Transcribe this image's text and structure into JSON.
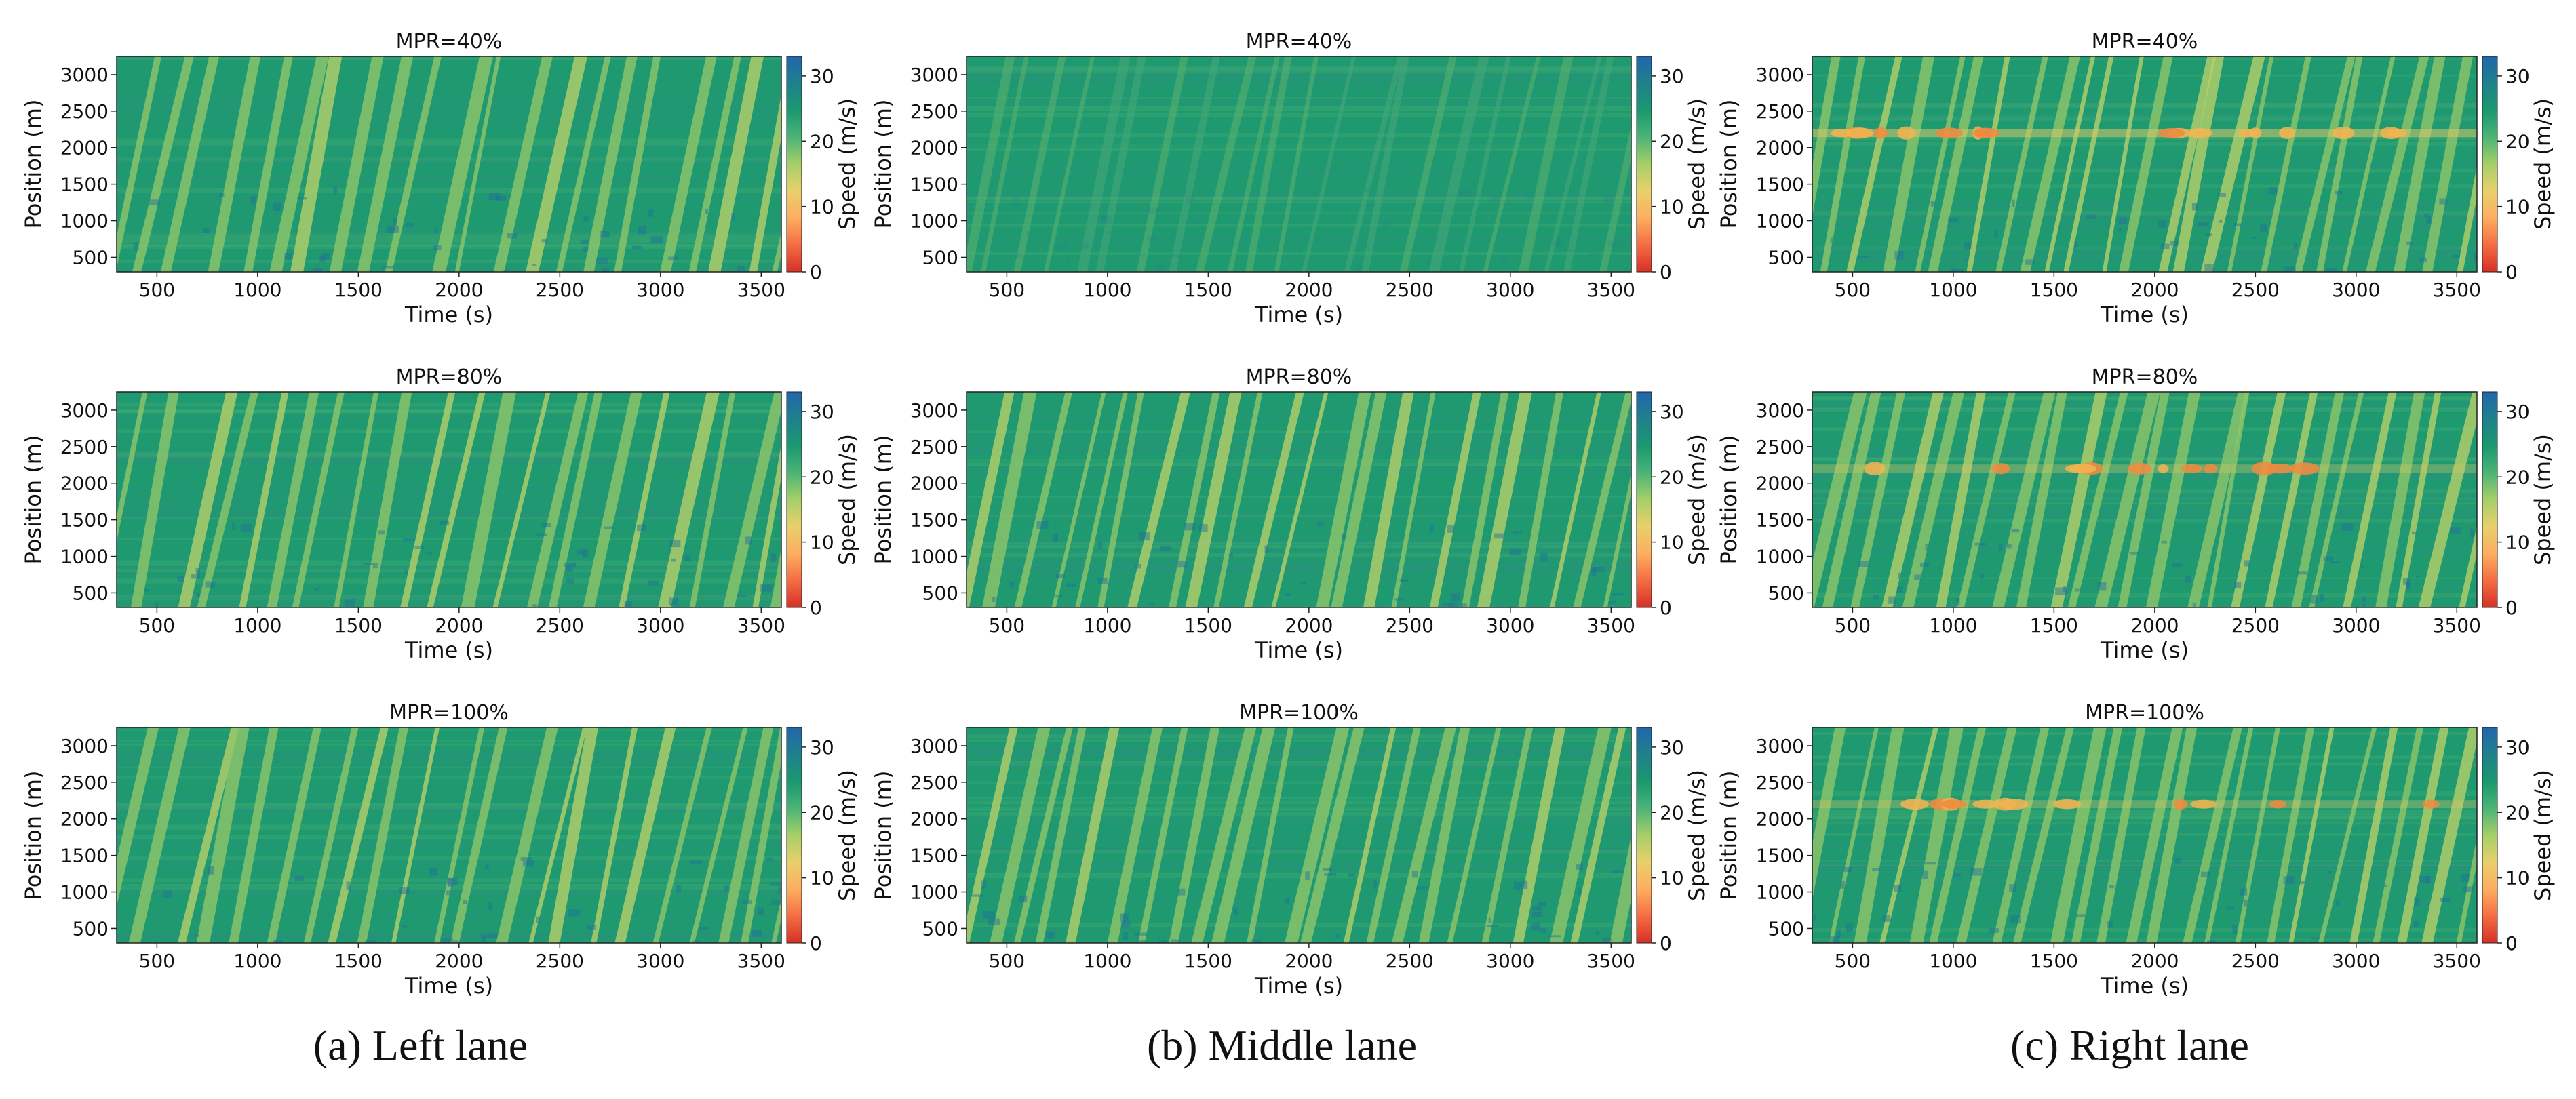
{
  "chart_data": [
    {
      "type": "heatmap",
      "lane": "Left lane",
      "title": "MPR=40%",
      "xlabel": "Time (s)",
      "ylabel": "Position (m)",
      "colorbar_label": "Speed (m/s)",
      "xlim": [
        300,
        3600
      ],
      "ylim": [
        300,
        3250
      ],
      "clim": [
        0,
        33
      ],
      "xticks": [
        500,
        1000,
        1500,
        2000,
        2500,
        3000,
        3500
      ],
      "yticks": [
        500,
        1000,
        1500,
        2000,
        2500,
        3000
      ],
      "cticks": [
        0,
        10,
        20,
        30
      ],
      "dominant_speed_range_ms": [
        20,
        30
      ],
      "congestion_band_position_m": null
    },
    {
      "type": "heatmap",
      "lane": "Middle lane",
      "title": "MPR=40%",
      "xlabel": "Time (s)",
      "ylabel": "Position (m)",
      "colorbar_label": "Speed (m/s)",
      "xlim": [
        300,
        3600
      ],
      "ylim": [
        300,
        3250
      ],
      "clim": [
        0,
        33
      ],
      "xticks": [
        500,
        1000,
        1500,
        2000,
        2500,
        3000,
        3500
      ],
      "yticks": [
        500,
        1000,
        1500,
        2000,
        2500,
        3000
      ],
      "cticks": [
        0,
        10,
        20,
        30
      ],
      "dominant_speed_range_ms": [
        21,
        25
      ],
      "congestion_band_position_m": null
    },
    {
      "type": "heatmap",
      "lane": "Right lane",
      "title": "MPR=40%",
      "xlabel": "Time (s)",
      "ylabel": "Position (m)",
      "colorbar_label": "Speed (m/s)",
      "xlim": [
        300,
        3600
      ],
      "ylim": [
        300,
        3250
      ],
      "clim": [
        0,
        33
      ],
      "xticks": [
        500,
        1000,
        1500,
        2000,
        2500,
        3000,
        3500
      ],
      "yticks": [
        500,
        1000,
        1500,
        2000,
        2500,
        3000
      ],
      "cticks": [
        0,
        10,
        20,
        30
      ],
      "dominant_speed_range_ms": [
        20,
        26
      ],
      "congestion_band_position_m": 2200
    },
    {
      "type": "heatmap",
      "lane": "Left lane",
      "title": "MPR=80%",
      "xlabel": "Time (s)",
      "ylabel": "Position (m)",
      "colorbar_label": "Speed (m/s)",
      "xlim": [
        300,
        3600
      ],
      "ylim": [
        300,
        3250
      ],
      "clim": [
        0,
        33
      ],
      "xticks": [
        500,
        1000,
        1500,
        2000,
        2500,
        3000,
        3500
      ],
      "yticks": [
        500,
        1000,
        1500,
        2000,
        2500,
        3000
      ],
      "cticks": [
        0,
        10,
        20,
        30
      ],
      "dominant_speed_range_ms": [
        20,
        30
      ],
      "congestion_band_position_m": null
    },
    {
      "type": "heatmap",
      "lane": "Middle lane",
      "title": "MPR=80%",
      "xlabel": "Time (s)",
      "ylabel": "Position (m)",
      "colorbar_label": "Speed (m/s)",
      "xlim": [
        300,
        3600
      ],
      "ylim": [
        300,
        3250
      ],
      "clim": [
        0,
        33
      ],
      "xticks": [
        500,
        1000,
        1500,
        2000,
        2500,
        3000,
        3500
      ],
      "yticks": [
        500,
        1000,
        1500,
        2000,
        2500,
        3000
      ],
      "cticks": [
        0,
        10,
        20,
        30
      ],
      "dominant_speed_range_ms": [
        20,
        30
      ],
      "congestion_band_position_m": null
    },
    {
      "type": "heatmap",
      "lane": "Right lane",
      "title": "MPR=80%",
      "xlabel": "Time (s)",
      "ylabel": "Position (m)",
      "colorbar_label": "Speed (m/s)",
      "xlim": [
        300,
        3600
      ],
      "ylim": [
        300,
        3250
      ],
      "clim": [
        0,
        33
      ],
      "xticks": [
        500,
        1000,
        1500,
        2000,
        2500,
        3000,
        3500
      ],
      "yticks": [
        500,
        1000,
        1500,
        2000,
        2500,
        3000
      ],
      "cticks": [
        0,
        10,
        20,
        30
      ],
      "dominant_speed_range_ms": [
        19,
        30
      ],
      "congestion_band_position_m": 2200
    },
    {
      "type": "heatmap",
      "lane": "Left lane",
      "title": "MPR=100%",
      "xlabel": "Time (s)",
      "ylabel": "Position (m)",
      "colorbar_label": "Speed (m/s)",
      "xlim": [
        300,
        3600
      ],
      "ylim": [
        300,
        3250
      ],
      "clim": [
        0,
        33
      ],
      "xticks": [
        500,
        1000,
        1500,
        2000,
        2500,
        3000,
        3500
      ],
      "yticks": [
        500,
        1000,
        1500,
        2000,
        2500,
        3000
      ],
      "cticks": [
        0,
        10,
        20,
        30
      ],
      "dominant_speed_range_ms": [
        20,
        30
      ],
      "congestion_band_position_m": null
    },
    {
      "type": "heatmap",
      "lane": "Middle lane",
      "title": "MPR=100%",
      "xlabel": "Time (s)",
      "ylabel": "Position (m)",
      "colorbar_label": "Speed (m/s)",
      "xlim": [
        300,
        3600
      ],
      "ylim": [
        300,
        3250
      ],
      "clim": [
        0,
        33
      ],
      "xticks": [
        500,
        1000,
        1500,
        2000,
        2500,
        3000,
        3500
      ],
      "yticks": [
        500,
        1000,
        1500,
        2000,
        2500,
        3000
      ],
      "cticks": [
        0,
        10,
        20,
        30
      ],
      "dominant_speed_range_ms": [
        20,
        30
      ],
      "congestion_band_position_m": null
    },
    {
      "type": "heatmap",
      "lane": "Right lane",
      "title": "MPR=100%",
      "xlabel": "Time (s)",
      "ylabel": "Position (m)",
      "colorbar_label": "Speed (m/s)",
      "xlim": [
        300,
        3600
      ],
      "ylim": [
        300,
        3250
      ],
      "clim": [
        0,
        33
      ],
      "xticks": [
        500,
        1000,
        1500,
        2000,
        2500,
        3000,
        3500
      ],
      "yticks": [
        500,
        1000,
        1500,
        2000,
        2500,
        3000
      ],
      "cticks": [
        0,
        10,
        20,
        30
      ],
      "dominant_speed_range_ms": [
        19,
        30
      ],
      "congestion_band_position_m": 2200
    }
  ],
  "colormap": [
    "#d73027",
    "#f46d43",
    "#fdae61",
    "#e8d06a",
    "#a6cf6a",
    "#4bb476",
    "#1a9870",
    "#20808c",
    "#2166ac"
  ],
  "captions": [
    "(a) Left lane",
    "(b) Middle lane",
    "(c) Right lane"
  ]
}
